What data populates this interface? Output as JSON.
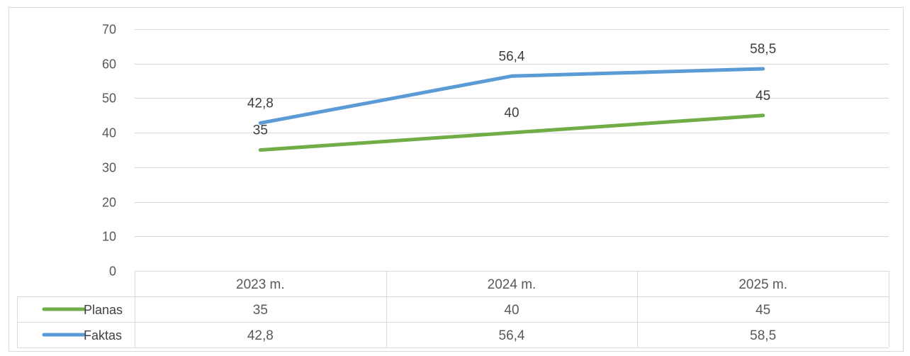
{
  "colors": {
    "planas": "#70ad47",
    "faktas": "#5b9bd5",
    "grid": "#d9d9d9",
    "border": "#d9d9d9",
    "text": "#595959"
  },
  "chart_data": {
    "type": "line",
    "categories": [
      "2023 m.",
      "2024 m.",
      "2025 m."
    ],
    "series": [
      {
        "name": "Planas",
        "values": [
          35,
          40,
          45
        ],
        "labels": [
          "35",
          "40",
          "45"
        ],
        "color": "#70ad47"
      },
      {
        "name": "Faktas",
        "values": [
          42.8,
          56.4,
          58.5
        ],
        "labels": [
          "42,8",
          "56,4",
          "58,5"
        ],
        "color": "#5b9bd5"
      }
    ],
    "ylim": [
      0,
      70
    ],
    "yticks": [
      0,
      10,
      20,
      30,
      40,
      50,
      60,
      70
    ],
    "grid": true,
    "data_table": true,
    "legend": "data-table"
  }
}
